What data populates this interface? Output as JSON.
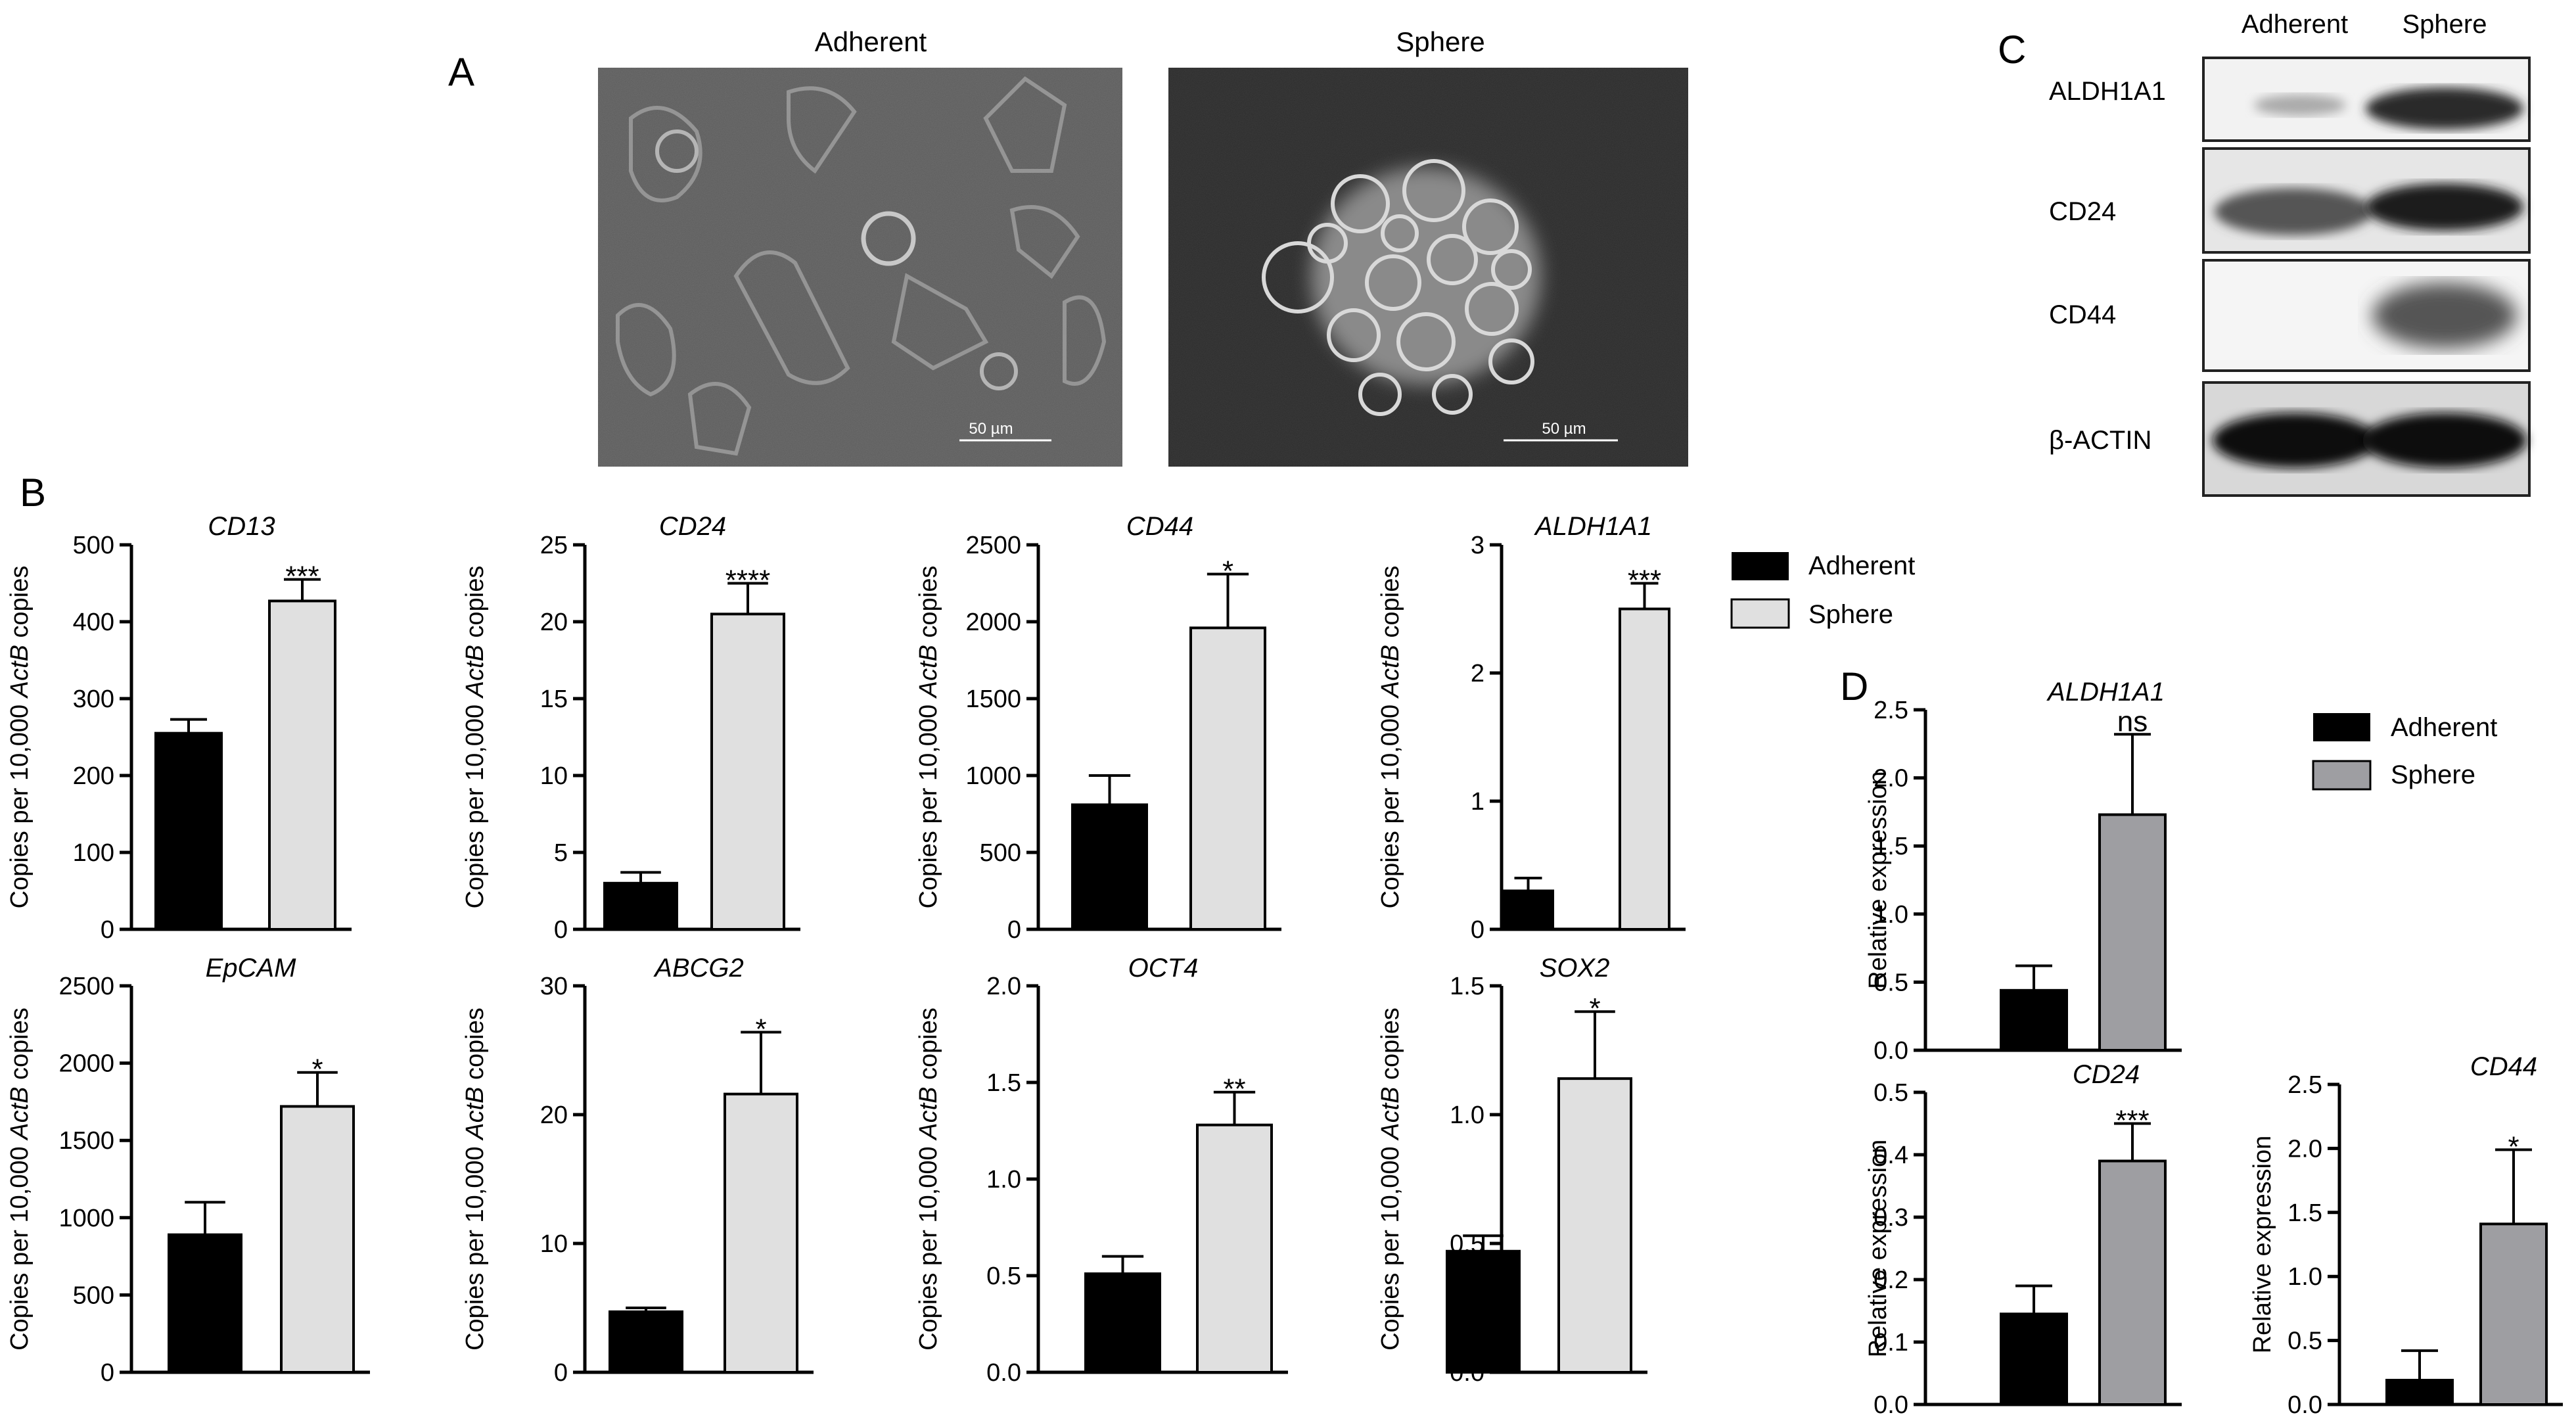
{
  "panels": {
    "A": "A",
    "B": "B",
    "C": "C",
    "D": "D"
  },
  "micrographs": {
    "left_title": "Adherent",
    "right_title": "Sphere",
    "left_scale": "50 µm",
    "right_scale": "50 µm"
  },
  "western_blot": {
    "columns": [
      "Adherent",
      "Sphere"
    ],
    "rows": [
      "ALDH1A1",
      "CD24",
      "CD44",
      "β-ACTIN"
    ]
  },
  "legend_b": {
    "items": [
      "Adherent",
      "Sphere"
    ],
    "colors": [
      "#000000",
      "#e0e0e0"
    ]
  },
  "legend_d": {
    "items": [
      "Adherent",
      "Sphere"
    ],
    "colors": [
      "#000000",
      "#9e9ea2"
    ]
  },
  "axis_b": {
    "ylabel_pre": "Copies per 10,000 ",
    "ylabel_em": "ActB",
    "ylabel_post": " copies"
  },
  "axis_d": {
    "ylabel": "Relative expression"
  },
  "chart_data": [
    {
      "type": "bar",
      "panel": "B",
      "title": "CD13",
      "categories": [
        "Adherent",
        "Sphere"
      ],
      "values": [
        255,
        427
      ],
      "errors": [
        18,
        28
      ],
      "ylim": [
        0,
        500
      ],
      "yticks": [
        0,
        100,
        200,
        300,
        400,
        500
      ],
      "tick_labels": [
        "0",
        "100",
        "200",
        "300",
        "400",
        "500"
      ],
      "significance": "***",
      "colors": [
        "#000000",
        "#e0e0e0"
      ]
    },
    {
      "type": "bar",
      "panel": "B",
      "title": "CD24",
      "categories": [
        "Adherent",
        "Sphere"
      ],
      "values": [
        3.0,
        20.5
      ],
      "errors": [
        0.7,
        2.0
      ],
      "ylim": [
        0,
        25
      ],
      "yticks": [
        0,
        5,
        10,
        15,
        20,
        25
      ],
      "tick_labels": [
        "0",
        "5",
        "10",
        "15",
        "20",
        "25"
      ],
      "significance": "****",
      "colors": [
        "#000000",
        "#e0e0e0"
      ]
    },
    {
      "type": "bar",
      "panel": "B",
      "title": "CD44",
      "categories": [
        "Adherent",
        "Sphere"
      ],
      "values": [
        810,
        1960
      ],
      "errors": [
        190,
        350
      ],
      "ylim": [
        0,
        2500
      ],
      "yticks": [
        0,
        500,
        1000,
        1500,
        2000,
        2500
      ],
      "tick_labels": [
        "0",
        "500",
        "1000",
        "1500",
        "2000",
        "2500"
      ],
      "significance": "*",
      "colors": [
        "#000000",
        "#e0e0e0"
      ]
    },
    {
      "type": "bar",
      "panel": "B",
      "title": "ALDH1A1",
      "categories": [
        "Adherent",
        "Sphere"
      ],
      "values": [
        0.3,
        2.5
      ],
      "errors": [
        0.1,
        0.2
      ],
      "ylim": [
        0,
        3
      ],
      "yticks": [
        0,
        1,
        2,
        3
      ],
      "tick_labels": [
        "0",
        "1",
        "2",
        "3"
      ],
      "significance": "***",
      "colors": [
        "#000000",
        "#e0e0e0"
      ]
    },
    {
      "type": "bar",
      "panel": "B",
      "title": "EpCAM",
      "categories": [
        "Adherent",
        "Sphere"
      ],
      "values": [
        890,
        1720
      ],
      "errors": [
        210,
        220
      ],
      "ylim": [
        0,
        2500
      ],
      "yticks": [
        0,
        500,
        1000,
        1500,
        2000,
        2500
      ],
      "tick_labels": [
        "0",
        "500",
        "1000",
        "1500",
        "2000",
        "2500"
      ],
      "significance": "*",
      "colors": [
        "#000000",
        "#e0e0e0"
      ]
    },
    {
      "type": "bar",
      "panel": "B",
      "title": "ABCG2",
      "categories": [
        "Adherent",
        "Sphere"
      ],
      "values": [
        4.7,
        21.6
      ],
      "errors": [
        0.3,
        4.8
      ],
      "ylim": [
        0,
        30
      ],
      "yticks": [
        0,
        10,
        20,
        30
      ],
      "tick_labels": [
        "0",
        "10",
        "20",
        "30"
      ],
      "significance": "*",
      "colors": [
        "#000000",
        "#e0e0e0"
      ]
    },
    {
      "type": "bar",
      "panel": "B",
      "title": "OCT4",
      "categories": [
        "Adherent",
        "Sphere"
      ],
      "values": [
        0.51,
        1.28
      ],
      "errors": [
        0.09,
        0.17
      ],
      "ylim": [
        0,
        2.0
      ],
      "yticks": [
        0,
        0.5,
        1.0,
        1.5,
        2.0
      ],
      "tick_labels": [
        "0.0",
        "0.5",
        "1.0",
        "1.5",
        "2.0"
      ],
      "significance": "**",
      "colors": [
        "#000000",
        "#e0e0e0"
      ]
    },
    {
      "type": "bar",
      "panel": "B",
      "title": "SOX2",
      "categories": [
        "Adherent",
        "Sphere"
      ],
      "values": [
        0.47,
        1.14
      ],
      "errors": [
        0.06,
        0.26
      ],
      "ylim": [
        0,
        1.5
      ],
      "yticks": [
        0,
        0.5,
        1.0,
        1.5
      ],
      "tick_labels": [
        "0.0",
        "0.5",
        "1.0",
        "1.5"
      ],
      "significance": "*",
      "colors": [
        "#000000",
        "#e0e0e0"
      ]
    },
    {
      "type": "bar",
      "panel": "D",
      "title": "ALDH1A1",
      "categories": [
        "Adherent",
        "Sphere"
      ],
      "values": [
        0.44,
        1.73
      ],
      "errors": [
        0.18,
        0.59
      ],
      "ylim": [
        0,
        2.5
      ],
      "yticks": [
        0,
        0.5,
        1.0,
        1.5,
        2.0,
        2.5
      ],
      "tick_labels": [
        "0.0",
        "0.5",
        "1.0",
        "1.5",
        "2.0",
        "2.5"
      ],
      "significance": "ns",
      "colors": [
        "#000000",
        "#9e9ea2"
      ]
    },
    {
      "type": "bar",
      "panel": "D",
      "title": "CD24",
      "categories": [
        "Adherent",
        "Sphere"
      ],
      "values": [
        0.145,
        0.39
      ],
      "errors": [
        0.045,
        0.06
      ],
      "ylim": [
        0,
        0.5
      ],
      "yticks": [
        0,
        0.1,
        0.2,
        0.3,
        0.4,
        0.5
      ],
      "tick_labels": [
        "0.0",
        "0.1",
        "0.2",
        "0.3",
        "0.4",
        "0.5"
      ],
      "significance": "***",
      "colors": [
        "#000000",
        "#9e9ea2"
      ]
    },
    {
      "type": "bar",
      "panel": "D",
      "title": "CD44",
      "categories": [
        "Adherent",
        "Sphere"
      ],
      "values": [
        0.19,
        1.41
      ],
      "errors": [
        0.23,
        0.58
      ],
      "ylim": [
        0,
        2.5
      ],
      "yticks": [
        0,
        0.5,
        1.0,
        1.5,
        2.0,
        2.5
      ],
      "tick_labels": [
        "0.0",
        "0.5",
        "1.0",
        "1.5",
        "2.0",
        "2.5"
      ],
      "significance": "*",
      "colors": [
        "#000000",
        "#9e9ea2"
      ]
    }
  ]
}
